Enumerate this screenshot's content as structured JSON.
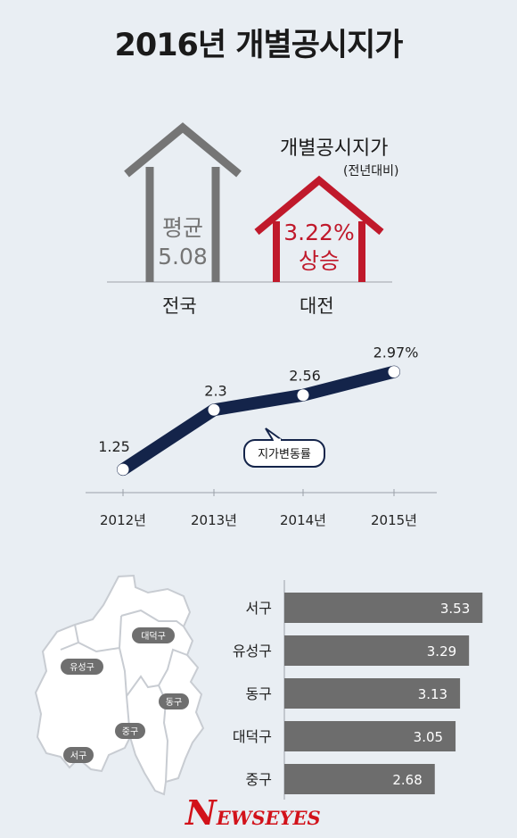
{
  "title": "2016년 개별공시지가",
  "houses": {
    "national": {
      "label": "전국",
      "line1": "평균",
      "line2": "5.08",
      "color": "#757575"
    },
    "daejeon": {
      "label": "대전",
      "line1": "3.22%",
      "line2": "상승",
      "color": "#c0192b"
    },
    "annotation_title": "개별공시지가",
    "annotation_sub": "(전년대비)"
  },
  "chart_data": [
    {
      "type": "line",
      "series": [
        {
          "name": "지가변동률",
          "values": [
            1.25,
            2.3,
            2.56,
            2.97
          ]
        }
      ],
      "categories": [
        "2012년",
        "2013년",
        "2014년",
        "2015년"
      ],
      "data_labels": [
        "1.25",
        "2.3",
        "2.56",
        "2.97%"
      ],
      "ylim": [
        1.0,
        3.2
      ],
      "line_color": "#14244a"
    },
    {
      "type": "bar",
      "orientation": "horizontal",
      "categories": [
        "서구",
        "유성구",
        "동구",
        "대덕구",
        "중구"
      ],
      "values": [
        3.53,
        3.29,
        3.13,
        3.05,
        2.68
      ],
      "xlim": [
        0,
        3.7
      ],
      "bar_color": "#6d6d6d"
    }
  ],
  "map": {
    "districts": [
      "대덕구",
      "유성구",
      "동구",
      "중구",
      "서구"
    ]
  },
  "logo": {
    "part1": "N",
    "part2": "EWSEYES"
  }
}
